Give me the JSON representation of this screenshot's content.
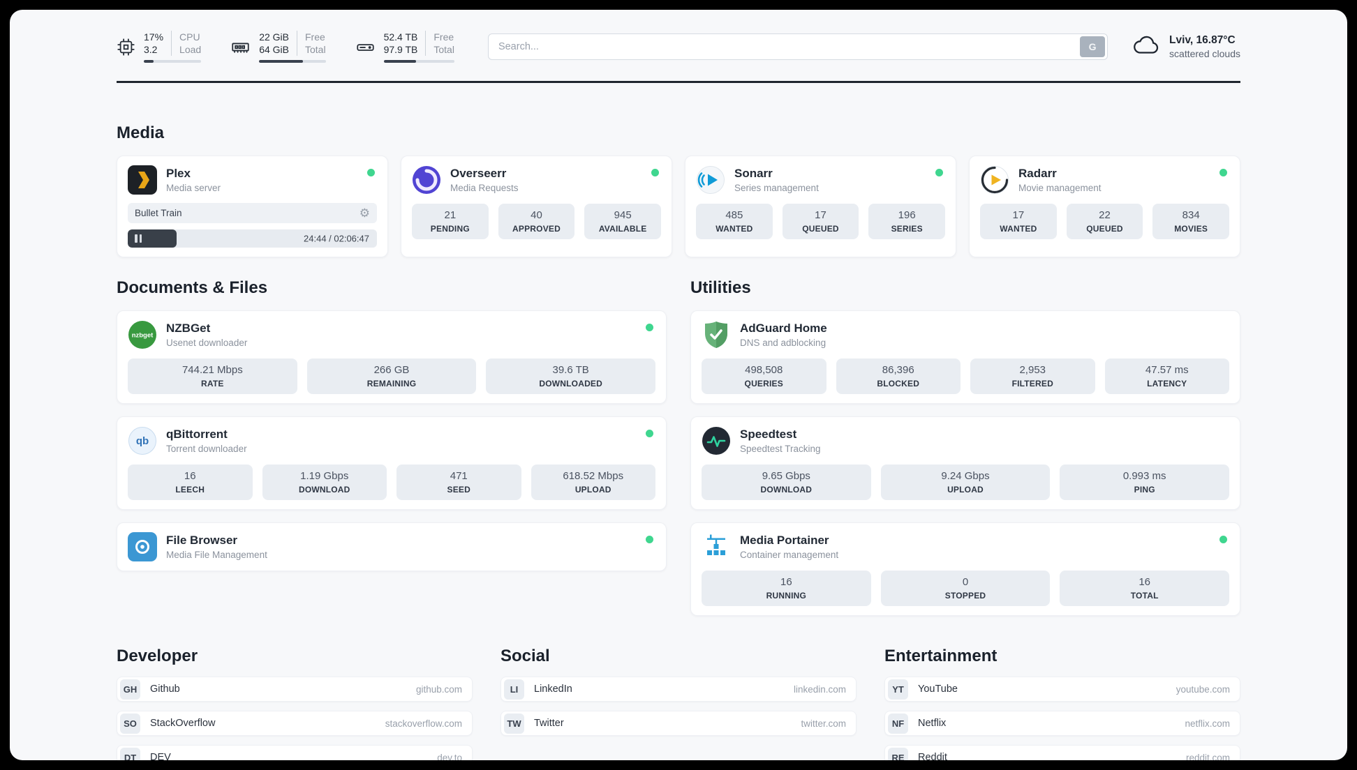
{
  "colors": {
    "status_online": "#3fd68f",
    "divider": "#20262e",
    "stat_bg": "#e9edf2",
    "accent_dark": "#394049"
  },
  "topbar": {
    "cpu": {
      "value_top": "17%",
      "value_bottom": "3.2",
      "label_top": "CPU",
      "label_bottom": "Load",
      "progress_percent": 17
    },
    "ram": {
      "value_top": "22 GiB",
      "value_bottom": "64 GiB",
      "label_top": "Free",
      "label_bottom": "Total",
      "progress_percent": 66
    },
    "disk": {
      "value_top": "52.4 TB",
      "value_bottom": "97.9 TB",
      "label_top": "Free",
      "label_bottom": "Total",
      "progress_percent": 46
    },
    "search": {
      "placeholder": "Search...",
      "button_label": "G"
    },
    "weather": {
      "location": "Lviv, 16.87°C",
      "condition": "scattered clouds"
    }
  },
  "sections": {
    "media": {
      "title": "Media"
    },
    "documents": {
      "title": "Documents & Files"
    },
    "utilities": {
      "title": "Utilities"
    },
    "developer": {
      "title": "Developer"
    },
    "social": {
      "title": "Social"
    },
    "entertainment": {
      "title": "Entertainment"
    }
  },
  "apps": {
    "plex": {
      "name": "Plex",
      "description": "Media server",
      "now_playing": "Bullet Train",
      "time": "24:44 / 02:06:47",
      "progress_percent": 19.5
    },
    "overseerr": {
      "name": "Overseerr",
      "description": "Media Requests",
      "stats": [
        {
          "value": "21",
          "label": "PENDING"
        },
        {
          "value": "40",
          "label": "APPROVED"
        },
        {
          "value": "945",
          "label": "AVAILABLE"
        }
      ]
    },
    "sonarr": {
      "name": "Sonarr",
      "description": "Series management",
      "stats": [
        {
          "value": "485",
          "label": "WANTED"
        },
        {
          "value": "17",
          "label": "QUEUED"
        },
        {
          "value": "196",
          "label": "SERIES"
        }
      ]
    },
    "radarr": {
      "name": "Radarr",
      "description": "Movie management",
      "stats": [
        {
          "value": "17",
          "label": "WANTED"
        },
        {
          "value": "22",
          "label": "QUEUED"
        },
        {
          "value": "834",
          "label": "MOVIES"
        }
      ]
    },
    "nzbget": {
      "name": "NZBGet",
      "description": "Usenet downloader",
      "logo_label": "nzbget",
      "stats": [
        {
          "value": "744.21 Mbps",
          "label": "RATE"
        },
        {
          "value": "266 GB",
          "label": "REMAINING"
        },
        {
          "value": "39.6 TB",
          "label": "DOWNLOADED"
        }
      ]
    },
    "qbittorrent": {
      "name": "qBittorrent",
      "description": "Torrent downloader",
      "logo_label": "qb",
      "stats": [
        {
          "value": "16",
          "label": "LEECH"
        },
        {
          "value": "1.19 Gbps",
          "label": "DOWNLOAD"
        },
        {
          "value": "471",
          "label": "SEED"
        },
        {
          "value": "618.52 Mbps",
          "label": "UPLOAD"
        }
      ]
    },
    "filebrowser": {
      "name": "File Browser",
      "description": "Media File Management"
    },
    "adguard": {
      "name": "AdGuard Home",
      "description": "DNS and adblocking",
      "stats": [
        {
          "value": "498,508",
          "label": "QUERIES"
        },
        {
          "value": "86,396",
          "label": "BLOCKED"
        },
        {
          "value": "2,953",
          "label": "FILTERED"
        },
        {
          "value": "47.57 ms",
          "label": "LATENCY"
        }
      ]
    },
    "speedtest": {
      "name": "Speedtest",
      "description": "Speedtest Tracking",
      "stats": [
        {
          "value": "9.65 Gbps",
          "label": "DOWNLOAD"
        },
        {
          "value": "9.24 Gbps",
          "label": "UPLOAD"
        },
        {
          "value": "0.993 ms",
          "label": "PING"
        }
      ]
    },
    "portainer": {
      "name": "Media Portainer",
      "description": "Container management",
      "stats": [
        {
          "value": "16",
          "label": "RUNNING"
        },
        {
          "value": "0",
          "label": "STOPPED"
        },
        {
          "value": "16",
          "label": "TOTAL"
        }
      ]
    }
  },
  "bookmarks": {
    "developer": [
      {
        "abbr": "GH",
        "name": "Github",
        "url": "github.com"
      },
      {
        "abbr": "SO",
        "name": "StackOverflow",
        "url": "stackoverflow.com"
      },
      {
        "abbr": "DT",
        "name": "DEV",
        "url": "dev.to"
      }
    ],
    "social": [
      {
        "abbr": "LI",
        "name": "LinkedIn",
        "url": "linkedin.com"
      },
      {
        "abbr": "TW",
        "name": "Twitter",
        "url": "twitter.com"
      }
    ],
    "entertainment": [
      {
        "abbr": "YT",
        "name": "YouTube",
        "url": "youtube.com"
      },
      {
        "abbr": "NF",
        "name": "Netflix",
        "url": "netflix.com"
      },
      {
        "abbr": "RE",
        "name": "Reddit",
        "url": "reddit.com"
      }
    ]
  }
}
